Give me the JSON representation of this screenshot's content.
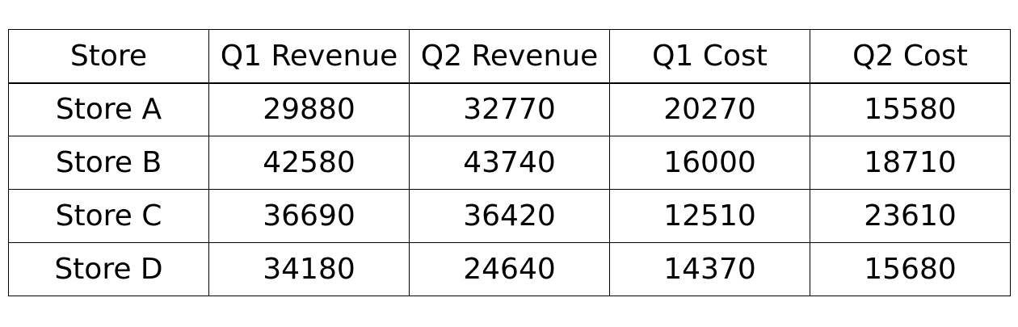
{
  "chart_data": {
    "type": "table",
    "columns": [
      "Store",
      "Q1 Revenue",
      "Q2 Revenue",
      "Q1 Cost",
      "Q2 Cost"
    ],
    "rows": [
      [
        "Store A",
        "29880",
        "32770",
        "20270",
        "15580"
      ],
      [
        "Store B",
        "42580",
        "43740",
        "16000",
        "18710"
      ],
      [
        "Store C",
        "36690",
        "36420",
        "12510",
        "23610"
      ],
      [
        "Store D",
        "34180",
        "24640",
        "14370",
        "15680"
      ]
    ]
  }
}
